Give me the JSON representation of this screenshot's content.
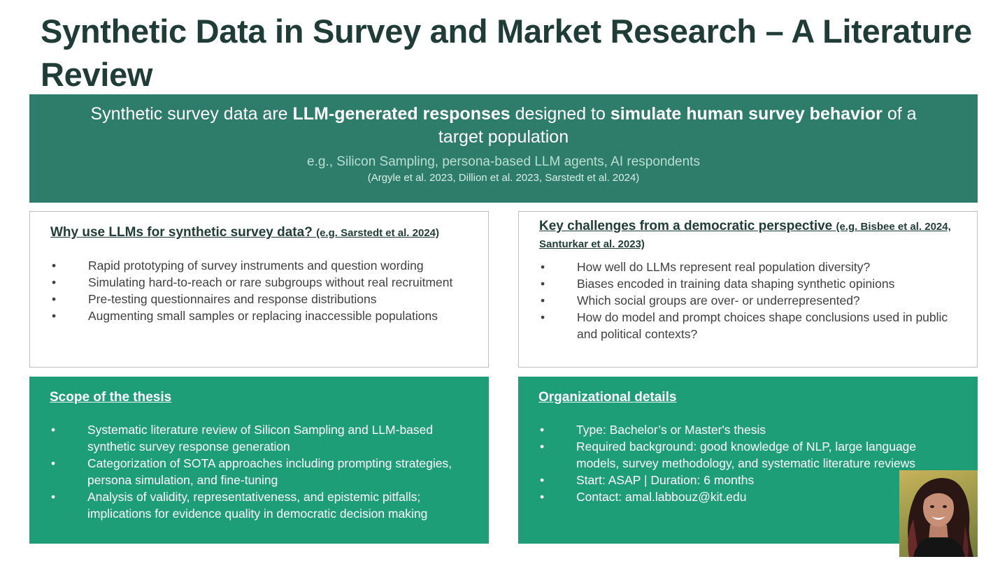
{
  "title": "Synthetic Data in Survey and Market Research – A Literature Review",
  "hero": {
    "line_part1": "Synthetic survey data are ",
    "line_bold1": "LLM-generated responses",
    "line_part2": " designed to ",
    "line_bold2": "simulate human survey behavior",
    "line_part3": " of a target population",
    "examples": "e.g., Silicon Sampling, persona-based LLM agents, AI respondents",
    "references": "(Argyle et al. 2023, Dillion et al. 2023, Sarstedt et al. 2024)"
  },
  "why": {
    "heading": "Why use LLMs for synthetic survey data?",
    "ref": "(e.g. Sarstedt et al. 2024)",
    "bullet_symbol": "•",
    "items": [
      "Rapid prototyping of survey instruments and question wording",
      "Simulating hard-to-reach or rare subgroups without real recruitment",
      "Pre-testing questionnaires and response distributions",
      "Augmenting small samples or replacing inaccessible populations"
    ]
  },
  "challenges": {
    "heading": "Key challenges from a democratic perspective",
    "ref": "(e.g. Bisbee et al. 2024, Santurkar et al. 2023)",
    "bullet_symbol": "•",
    "items": [
      "How well do LLMs represent real population diversity?",
      "Biases encoded in training data shaping synthetic opinions",
      "Which social groups are over- or underrepresented?",
      "How do model and prompt choices shape conclusions used in public and political contexts?"
    ]
  },
  "scope": {
    "heading": "Scope of the thesis",
    "bullet_symbol": "•",
    "items": [
      "Systematic literature review of Silicon Sampling and LLM-based synthetic survey response generation",
      "Categorization of SOTA approaches including prompting strategies, persona simulation, and fine-tuning",
      "Analysis of validity, representativeness, and epistemic pitfalls; implications for evidence quality in democratic decision making"
    ]
  },
  "org": {
    "heading": "Organizational details",
    "bullet_symbol": "•",
    "items": [
      "Type: Bachelor’s or Master's thesis",
      "Required background: good knowledge of NLP, large language models, survey methodology, and systematic literature reviews",
      "Start: ASAP | Duration: 6 months",
      "Contact: amal.labbouz@kit.edu"
    ]
  },
  "colors": {
    "title": "#1f3d36",
    "hero_bg": "#2e7d6b",
    "filled_box_bg": "#1e9e76",
    "outline_border": "#bfbfbf"
  }
}
